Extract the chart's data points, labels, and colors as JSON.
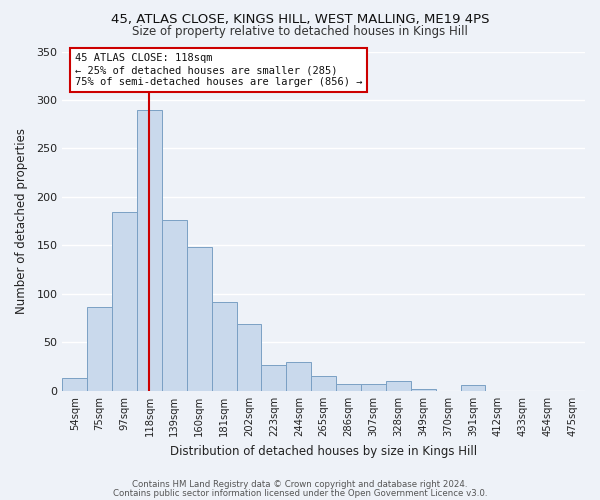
{
  "title1": "45, ATLAS CLOSE, KINGS HILL, WEST MALLING, ME19 4PS",
  "title2": "Size of property relative to detached houses in Kings Hill",
  "xlabel": "Distribution of detached houses by size in Kings Hill",
  "ylabel": "Number of detached properties",
  "bar_color": "#c9d9ec",
  "bar_edge_color": "#7aa0c4",
  "background_color": "#eef2f8",
  "grid_color": "#ffffff",
  "categories": [
    "54sqm",
    "75sqm",
    "97sqm",
    "118sqm",
    "139sqm",
    "160sqm",
    "181sqm",
    "202sqm",
    "223sqm",
    "244sqm",
    "265sqm",
    "286sqm",
    "307sqm",
    "328sqm",
    "349sqm",
    "370sqm",
    "391sqm",
    "412sqm",
    "433sqm",
    "454sqm",
    "475sqm"
  ],
  "values": [
    13,
    87,
    185,
    290,
    176,
    148,
    92,
    69,
    27,
    30,
    15,
    7,
    7,
    10,
    2,
    0,
    6,
    0,
    0,
    0,
    0
  ],
  "ylim": [
    0,
    350
  ],
  "yticks": [
    0,
    50,
    100,
    150,
    200,
    250,
    300,
    350
  ],
  "marker_label": "45 ATLAS CLOSE: 118sqm",
  "annotation_line1": "← 25% of detached houses are smaller (285)",
  "annotation_line2": "75% of semi-detached houses are larger (856) →",
  "marker_color": "#cc0000",
  "annotation_box_color": "#ffffff",
  "annotation_box_edge": "#cc0000",
  "footnote1": "Contains HM Land Registry data © Crown copyright and database right 2024.",
  "footnote2": "Contains public sector information licensed under the Open Government Licence v3.0."
}
